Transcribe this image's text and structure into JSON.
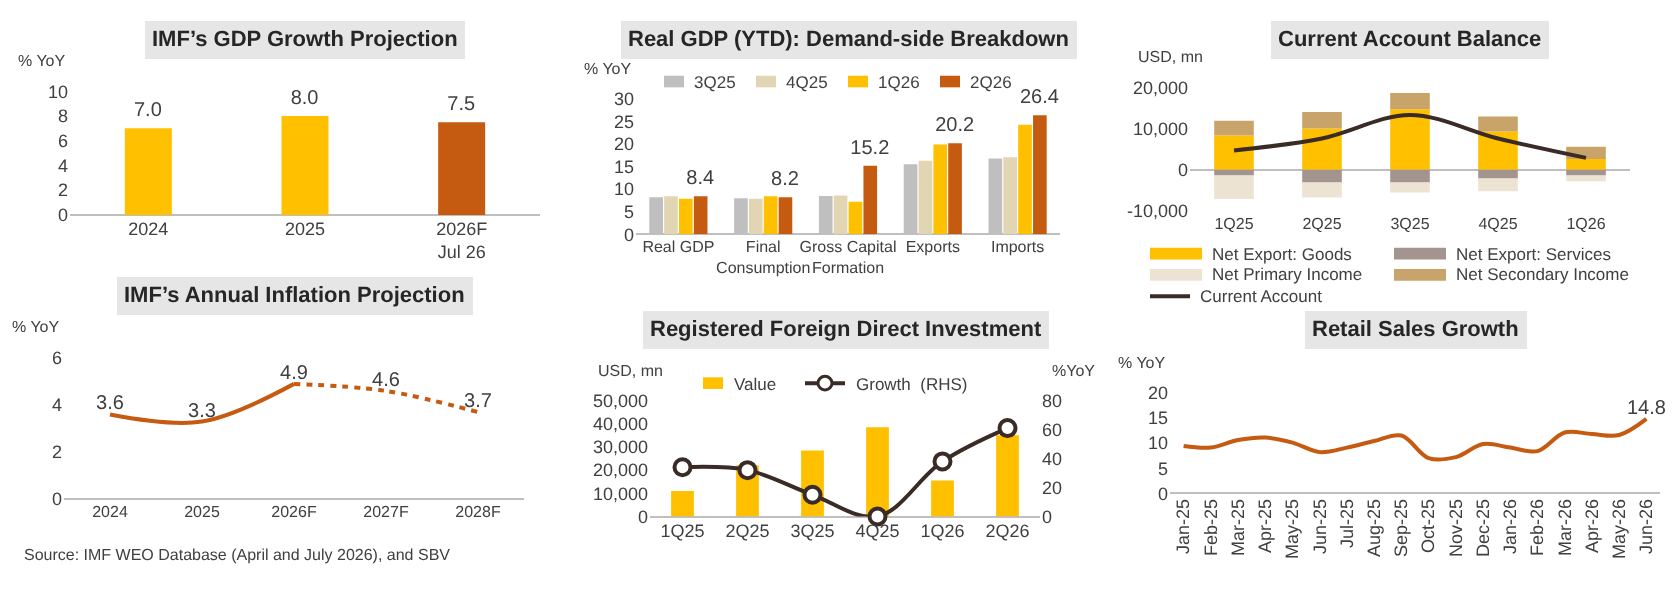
{
  "chart_data": [
    {
      "type": "bar",
      "title": "IMF’s GDP Growth Projection",
      "ylabel": "% YoY",
      "categories": [
        "2024",
        "2025",
        "2026F\nJul 26"
      ],
      "values": [
        7.0,
        8.0,
        7.5
      ],
      "value_labels": [
        "7.0",
        "8.0",
        "7.5"
      ],
      "colors": [
        "#ffc000",
        "#ffc000",
        "#c55a11"
      ],
      "ylim": [
        0,
        10
      ],
      "yticks": [
        0,
        2,
        4,
        6,
        8,
        10
      ]
    },
    {
      "type": "bar",
      "title": "Real GDP (YTD): Demand-side Breakdown",
      "ylabel": "% YoY",
      "categories": [
        "Real GDP",
        "Final\nConsumption",
        "Gross Capital\nFormation",
        "Exports",
        "Imports"
      ],
      "ylim": [
        0,
        30
      ],
      "yticks": [
        0,
        5,
        10,
        15,
        20,
        25,
        30
      ],
      "legend": "top",
      "series": [
        {
          "name": "3Q25",
          "color": "#bfbfbf",
          "values": [
            8.2,
            8.0,
            8.5,
            15.5,
            16.8
          ]
        },
        {
          "name": "4Q25",
          "color": "#e2d5b4",
          "values": [
            8.4,
            7.9,
            8.6,
            16.3,
            17.1
          ]
        },
        {
          "name": "1Q26",
          "color": "#ffc000",
          "values": [
            7.9,
            8.4,
            7.2,
            19.9,
            24.3
          ]
        },
        {
          "name": "2Q26",
          "color": "#c55a11",
          "values": [
            8.4,
            8.2,
            15.2,
            20.2,
            26.4
          ],
          "value_labels": [
            "8.4",
            "8.2",
            "15.2",
            "20.2",
            "26.4"
          ]
        }
      ]
    },
    {
      "type": "bar",
      "stacked": true,
      "title": "Current Account Balance",
      "ylabel": "USD, mn",
      "categories": [
        "1Q25",
        "2Q25",
        "3Q25",
        "4Q25",
        "1Q26"
      ],
      "ylim": [
        -10000,
        20000
      ],
      "yticks": [
        {
          "value": -10000,
          "label": "-10,000"
        },
        0,
        {
          "value": 10000,
          "label": "10,000"
        },
        {
          "value": 20000,
          "label": "20,000"
        }
      ],
      "legend": "bottom",
      "series": [
        {
          "name": "Net Export: Goods",
          "color": "#ffc000",
          "values": [
            8300,
            10000,
            14700,
            9300,
            2600
          ]
        },
        {
          "name": "Net Export: Services",
          "color": "#a39490",
          "values": [
            -1400,
            -3100,
            -3100,
            -2100,
            -1400
          ]
        },
        {
          "name": "Net Primary Income",
          "color": "#ede3d2",
          "values": [
            -5700,
            -3600,
            -2400,
            -3100,
            -1400
          ]
        },
        {
          "name": "Net Secondary Income",
          "color": "#c9a46a",
          "values": [
            3600,
            4000,
            3900,
            3600,
            3000
          ]
        },
        {
          "name": "Current Account",
          "type": "line",
          "color": "#3a2b26",
          "values": [
            4700,
            7600,
            13300,
            7600,
            2900
          ]
        }
      ]
    },
    {
      "type": "line",
      "title": "IMF’s Annual Inflation Projection",
      "ylabel": "% YoY",
      "categories": [
        "2024",
        "2025",
        "2026F",
        "2027F",
        "2028F"
      ],
      "ylim": [
        0,
        6
      ],
      "yticks": [
        0,
        2,
        4,
        6
      ],
      "annotations": [
        "Source: IMF WEO Database (April and July 2026), and SBV"
      ],
      "series": [
        {
          "color": "#c55a11",
          "line_style": "solid",
          "values": [
            3.6,
            3.3,
            4.9,
            null,
            null
          ],
          "value_labels": [
            "3.6",
            "3.3",
            "4.9",
            null,
            null
          ]
        },
        {
          "color": "#c55a11",
          "line_style": "dotted",
          "values": [
            null,
            null,
            4.9,
            4.6,
            3.7
          ],
          "value_labels": [
            null,
            null,
            null,
            "4.6",
            "3.7"
          ]
        }
      ]
    },
    {
      "type": "bar",
      "title": "Registered Foreign Direct Investment",
      "ylabel": "USD, mn",
      "y2label": "%YoY",
      "categories": [
        "1Q25",
        "2Q25",
        "3Q25",
        "4Q25",
        "1Q26",
        "2Q26"
      ],
      "ylim": [
        0,
        50000
      ],
      "yticks": [
        0,
        {
          "value": 10000,
          "label": "10,000"
        },
        {
          "value": 20000,
          "label": "20,000"
        },
        {
          "value": 30000,
          "label": "30,000"
        },
        {
          "value": 40000,
          "label": "40,000"
        },
        {
          "value": 50000,
          "label": "50,000"
        }
      ],
      "y2lim": [
        0,
        80
      ],
      "y2ticks": [
        0,
        20,
        40,
        60,
        80
      ],
      "legend": "top",
      "series": [
        {
          "name": "Value",
          "color": "#ffc000",
          "values": [
            11000,
            22000,
            28500,
            38500,
            15500,
            35000
          ]
        },
        {
          "name": "Growth  (RHS)",
          "type": "line",
          "axis": "y2",
          "marker": "circle",
          "color": "#3a2b26",
          "values": [
            34,
            32,
            15,
            0,
            38,
            61
          ]
        }
      ]
    },
    {
      "type": "line",
      "title": "Retail Sales Growth",
      "ylabel": "% YoY",
      "categories": [
        "Jan-25",
        "Feb-25",
        "Mar-25",
        "Apr-25",
        "May-25",
        "Jun-25",
        "Jul-25",
        "Aug-25",
        "Sep-25",
        "Oct-25",
        "Nov-25",
        "Dec-25",
        "Jan-26",
        "Feb-26",
        "Mar-26",
        "Apr-26",
        "May-26",
        "Jun-26"
      ],
      "ylim": [
        0,
        20
      ],
      "yticks": [
        0,
        5,
        10,
        15,
        20
      ],
      "color": "#c55a11",
      "values": [
        9.4,
        9.1,
        10.6,
        11.1,
        10.1,
        8.2,
        9.1,
        10.4,
        11.5,
        7.0,
        7.2,
        9.8,
        9.1,
        8.4,
        12.1,
        11.8,
        11.6,
        14.8
      ],
      "value_labels": [
        null,
        null,
        null,
        null,
        null,
        null,
        null,
        null,
        null,
        null,
        null,
        null,
        null,
        null,
        null,
        null,
        null,
        "14.8"
      ]
    }
  ]
}
